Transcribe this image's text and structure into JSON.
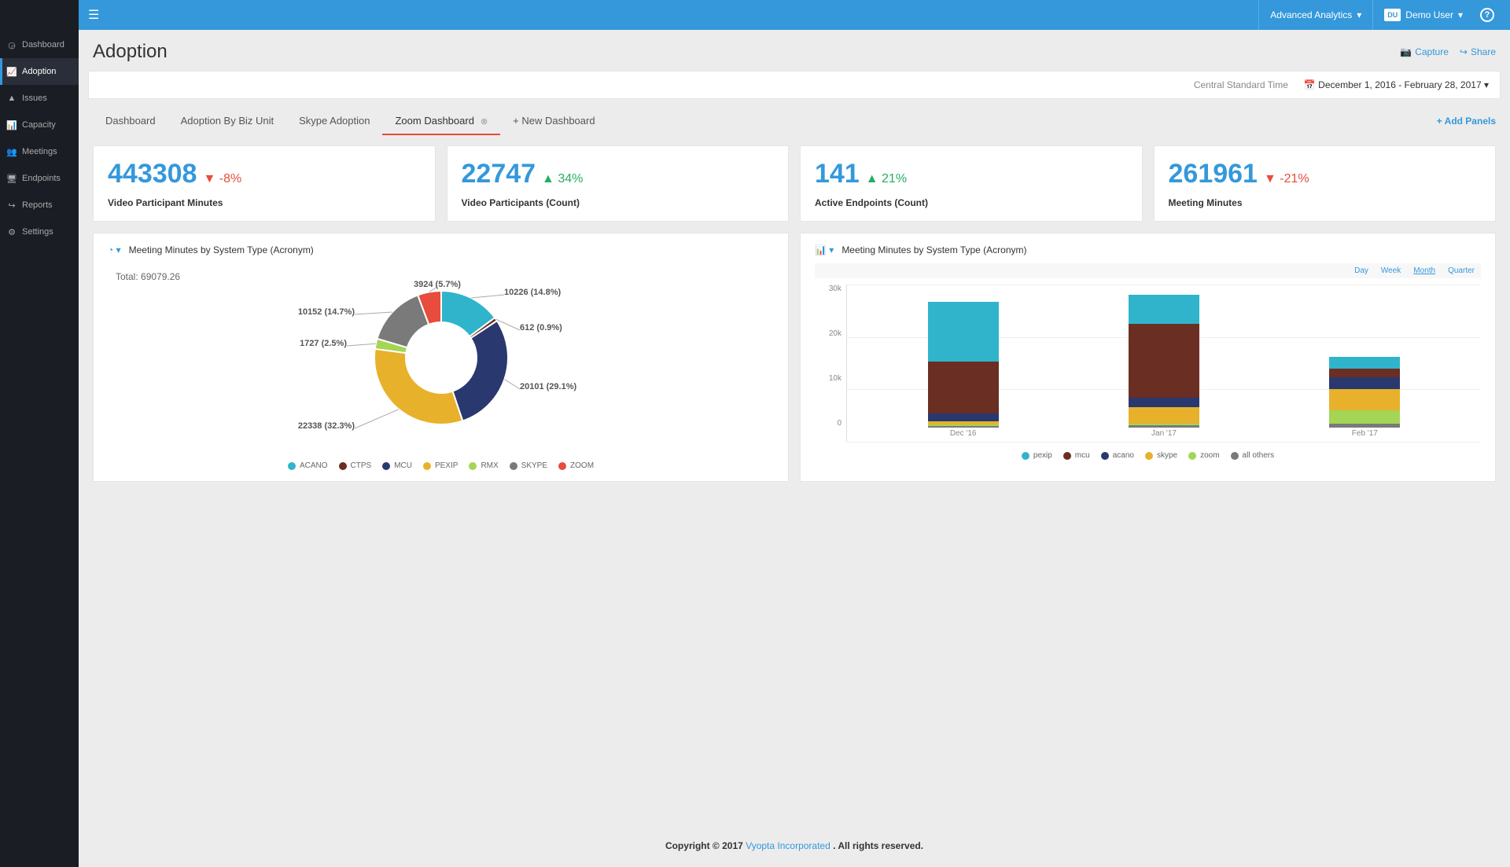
{
  "sidebar": {
    "items": [
      {
        "label": "Dashboard",
        "icon": "gauge"
      },
      {
        "label": "Adoption",
        "icon": "chart-line",
        "active": true
      },
      {
        "label": "Issues",
        "icon": "warning"
      },
      {
        "label": "Capacity",
        "icon": "chart-bar"
      },
      {
        "label": "Meetings",
        "icon": "people"
      },
      {
        "label": "Endpoints",
        "icon": "display"
      },
      {
        "label": "Reports",
        "icon": "share"
      },
      {
        "label": "Settings",
        "icon": "gear"
      }
    ]
  },
  "topbar": {
    "analytics_label": "Advanced Analytics",
    "user_initials": "DU",
    "user_label": "Demo User"
  },
  "page": {
    "title": "Adoption",
    "capture_label": "Capture",
    "share_label": "Share"
  },
  "filterbar": {
    "timezone": "Central Standard Time",
    "daterange": "December 1, 2016 - February 28, 2017"
  },
  "tabs": {
    "items": [
      "Dashboard",
      "Adoption By Biz Unit",
      "Skype Adoption",
      "Zoom Dashboard",
      "+ New Dashboard"
    ],
    "active_index": 3,
    "add_panels_label": "+ Add Panels"
  },
  "kpis": [
    {
      "value": "443308",
      "delta": "-8%",
      "direction": "down",
      "label": "Video Participant Minutes"
    },
    {
      "value": "22747",
      "delta": "34%",
      "direction": "up",
      "label": "Video Participants (Count)"
    },
    {
      "value": "141",
      "delta": "21%",
      "direction": "up",
      "label": "Active Endpoints (Count)"
    },
    {
      "value": "261961",
      "delta": "-21%",
      "direction": "down",
      "label": "Meeting Minutes"
    }
  ],
  "donut_chart": {
    "title": "Meeting Minutes by System Type (Acronym)",
    "total_label": "Total: 69079.26",
    "colors": {
      "ACANO": "#2fb4cb",
      "CTPS": "#6b2e22",
      "MCU": "#2a3870",
      "PEXIP": "#e8b12b",
      "RMX": "#a4d555",
      "SKYPE": "#7a7a7a",
      "ZOOM": "#e74c3c"
    },
    "slices": [
      {
        "name": "ACANO",
        "value": 10226,
        "pct": 14.8
      },
      {
        "name": "CTPS",
        "value": 612,
        "pct": 0.9
      },
      {
        "name": "MCU",
        "value": 20101,
        "pct": 29.1
      },
      {
        "name": "PEXIP",
        "value": 22338,
        "pct": 32.3
      },
      {
        "name": "RMX",
        "value": 1727,
        "pct": 2.5
      },
      {
        "name": "SKYPE",
        "value": 10152,
        "pct": 14.7
      },
      {
        "name": "ZOOM",
        "value": 3924,
        "pct": 5.7
      }
    ],
    "legend": [
      "ACANO",
      "CTPS",
      "MCU",
      "PEXIP",
      "RMX",
      "SKYPE",
      "ZOOM"
    ]
  },
  "bar_chart": {
    "title": "Meeting Minutes by System Type (Acronym)",
    "periods": [
      "Day",
      "Week",
      "Month",
      "Quarter"
    ],
    "active_period": "Month",
    "y_max": 30000,
    "y_ticks": [
      "30k",
      "20k",
      "10k",
      "0"
    ],
    "categories": [
      "Dec '16",
      "Jan '17",
      "Feb '17"
    ],
    "series_order": [
      "all others",
      "zoom",
      "skype",
      "acano",
      "mcu",
      "pexip"
    ],
    "colors": {
      "pexip": "#2fb4cb",
      "mcu": "#6b2e22",
      "acano": "#2a3870",
      "skype": "#e8b12b",
      "zoom": "#a4d555",
      "all others": "#7a7a7a"
    },
    "data": [
      {
        "pexip": 12500,
        "mcu": 11000,
        "acano": 1500,
        "skype": 700,
        "zoom": 300,
        "all others": 400
      },
      {
        "pexip": 6000,
        "mcu": 15500,
        "acano": 2000,
        "skype": 3500,
        "zoom": 300,
        "all others": 500
      },
      {
        "pexip": 2500,
        "mcu": 1800,
        "acano": 2500,
        "skype": 4500,
        "zoom": 2800,
        "all others": 800
      }
    ],
    "legend": [
      "pexip",
      "mcu",
      "acano",
      "skype",
      "zoom",
      "all others"
    ]
  },
  "footer": {
    "copyright_prefix": "Copyright © 2017 ",
    "company": "Vyopta Incorporated",
    "copyright_suffix": ". All rights reserved."
  }
}
